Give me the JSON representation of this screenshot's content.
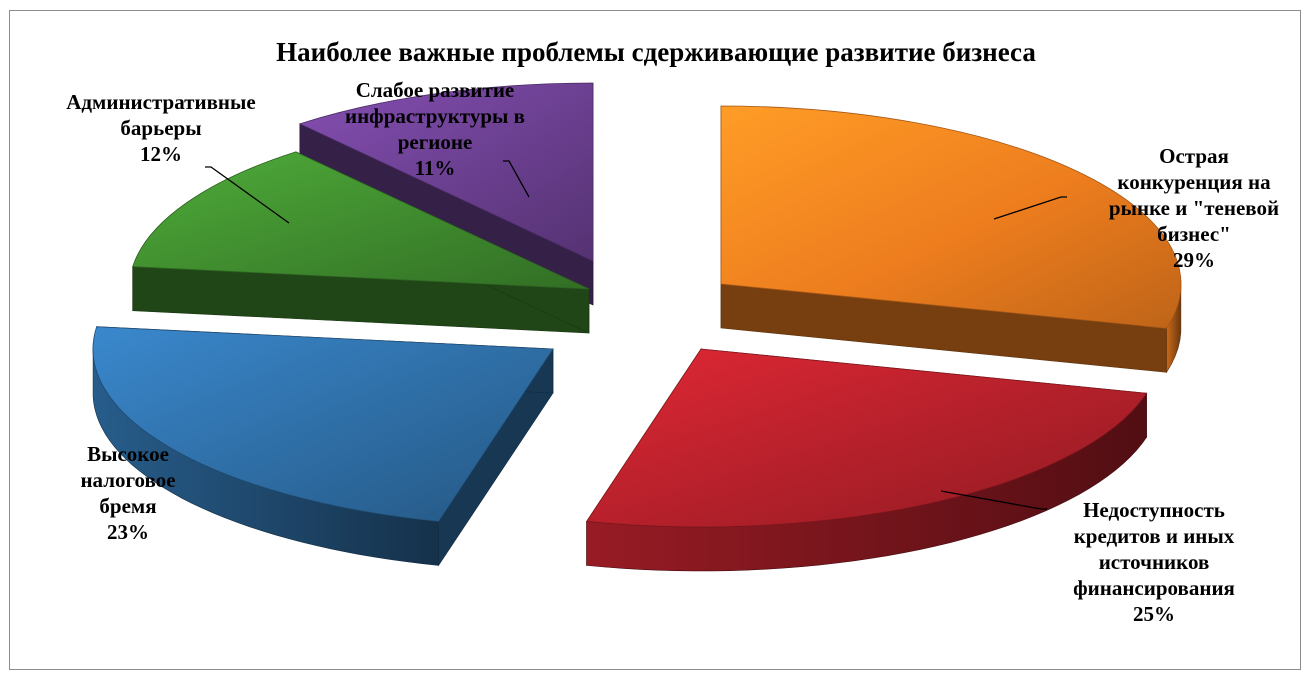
{
  "chart_data": {
    "type": "pie",
    "title": "Наиболее важные проблемы сдерживающие развитие бизнеса",
    "slices": [
      {
        "name": "Острая конкуренция на рынке и \"теневой бизнес\"",
        "value": 29,
        "label": "29%",
        "color": "#ED7D1E",
        "label_lines": [
          "Острая",
          "конкуренция на",
          "рынке и \"теневой",
          "бизнес\""
        ]
      },
      {
        "name": "Недоступность кредитов и иных источников финансирования",
        "value": 25,
        "label": "25%",
        "color": "#B3202A",
        "label_lines": [
          "Недоступность",
          "кредитов и иных",
          "источников",
          "финансирования"
        ]
      },
      {
        "name": "Высокое налоговое бремя",
        "value": 23,
        "label": "23%",
        "color": "#2E6DA4",
        "label_lines": [
          "Высокое",
          "налоговое",
          "бремя"
        ]
      },
      {
        "name": "Административные барьеры",
        "value": 12,
        "label": "12%",
        "color": "#3F8A2E",
        "label_lines": [
          "Административные",
          "барьеры"
        ]
      },
      {
        "name": "Слабое развитие инфраструктуры в регионе",
        "value": 11,
        "label": "11%",
        "color": "#6A3F8F",
        "label_lines": [
          "Слабое развитие",
          "инфраструктуры в",
          "регионе"
        ]
      }
    ],
    "exploded": true,
    "three_d": true,
    "legend": "none"
  }
}
